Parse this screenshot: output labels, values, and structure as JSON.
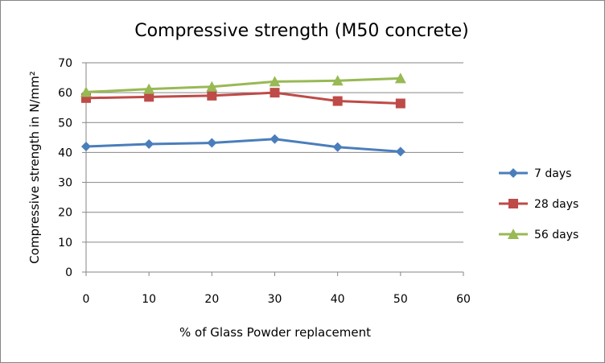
{
  "chart_data": {
    "type": "line",
    "title": "Compressive strength (M50 concrete)",
    "xlabel": "% of Glass Powder replacement",
    "ylabel": "Compressive strength in  N/mm²",
    "x": [
      0,
      10,
      20,
      30,
      40,
      50
    ],
    "xlim": [
      0,
      60
    ],
    "ylim": [
      0,
      70
    ],
    "x_ticks": [
      0,
      10,
      20,
      30,
      40,
      50,
      60
    ],
    "y_ticks": [
      0,
      10,
      20,
      30,
      40,
      50,
      60,
      70
    ],
    "grid": true,
    "legend_position": "right",
    "series": [
      {
        "name": "7 days",
        "color": "#4a7ebb",
        "marker": "diamond",
        "values": [
          42.0,
          42.8,
          43.2,
          44.5,
          41.8,
          40.3
        ]
      },
      {
        "name": "28 days",
        "color": "#be4b48",
        "marker": "square",
        "values": [
          58.2,
          58.6,
          59.0,
          60.0,
          57.2,
          56.4
        ]
      },
      {
        "name": "56 days",
        "color": "#98b954",
        "marker": "triangle",
        "values": [
          60.2,
          61.2,
          62.0,
          63.7,
          64.0,
          64.8
        ]
      }
    ]
  }
}
